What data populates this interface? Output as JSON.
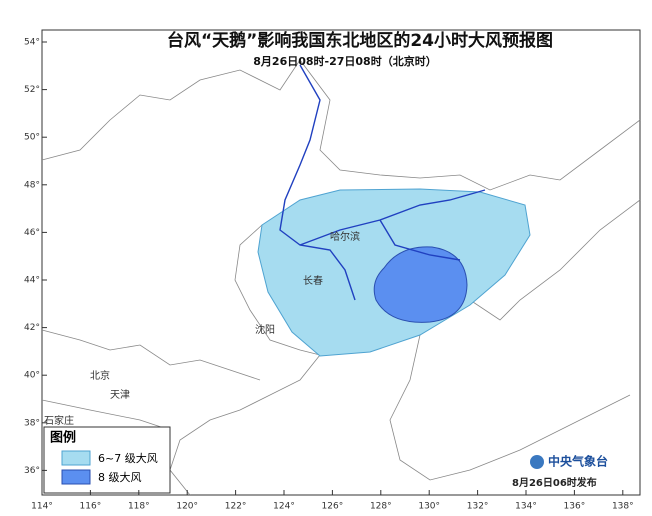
{
  "title": "台风“天鹅”影响我国东北地区的24小时大风预报图",
  "subtitle": "8月26日08时-27日08时（北京时）",
  "lat_ticks": [
    {
      "value": 54,
      "label": "54°"
    },
    {
      "value": 52,
      "label": "52°"
    },
    {
      "value": 50,
      "label": "50°"
    },
    {
      "value": 48,
      "label": "48°"
    },
    {
      "value": 46,
      "label": "46°"
    },
    {
      "value": 44,
      "label": "44°"
    },
    {
      "value": 42,
      "label": "42°"
    },
    {
      "value": 40,
      "label": "40°"
    },
    {
      "value": 38,
      "label": "38°"
    },
    {
      "value": 36,
      "label": "36°"
    }
  ],
  "lon_ticks": [
    {
      "value": 114,
      "label": "114°"
    },
    {
      "value": 116,
      "label": "116°"
    },
    {
      "value": 118,
      "label": "118°"
    },
    {
      "value": 120,
      "label": "120°"
    },
    {
      "value": 122,
      "label": "122°"
    },
    {
      "value": 124,
      "label": "124°"
    },
    {
      "value": 126,
      "label": "126°"
    },
    {
      "value": 128,
      "label": "128°"
    },
    {
      "value": 130,
      "label": "130°"
    },
    {
      "value": 132,
      "label": "132°"
    },
    {
      "value": 134,
      "label": "134°"
    },
    {
      "value": 136,
      "label": "136°"
    },
    {
      "value": 138,
      "label": "138°"
    }
  ],
  "cities": [
    "哈尔滨",
    "长春",
    "沈阳",
    "北京",
    "天津",
    "石家庄"
  ],
  "legend": {
    "title": "图例",
    "items": [
      "6~7 级大风",
      "8  级大风"
    ]
  },
  "publisher": "中央气象台",
  "issued": "8月26日06时发布"
}
